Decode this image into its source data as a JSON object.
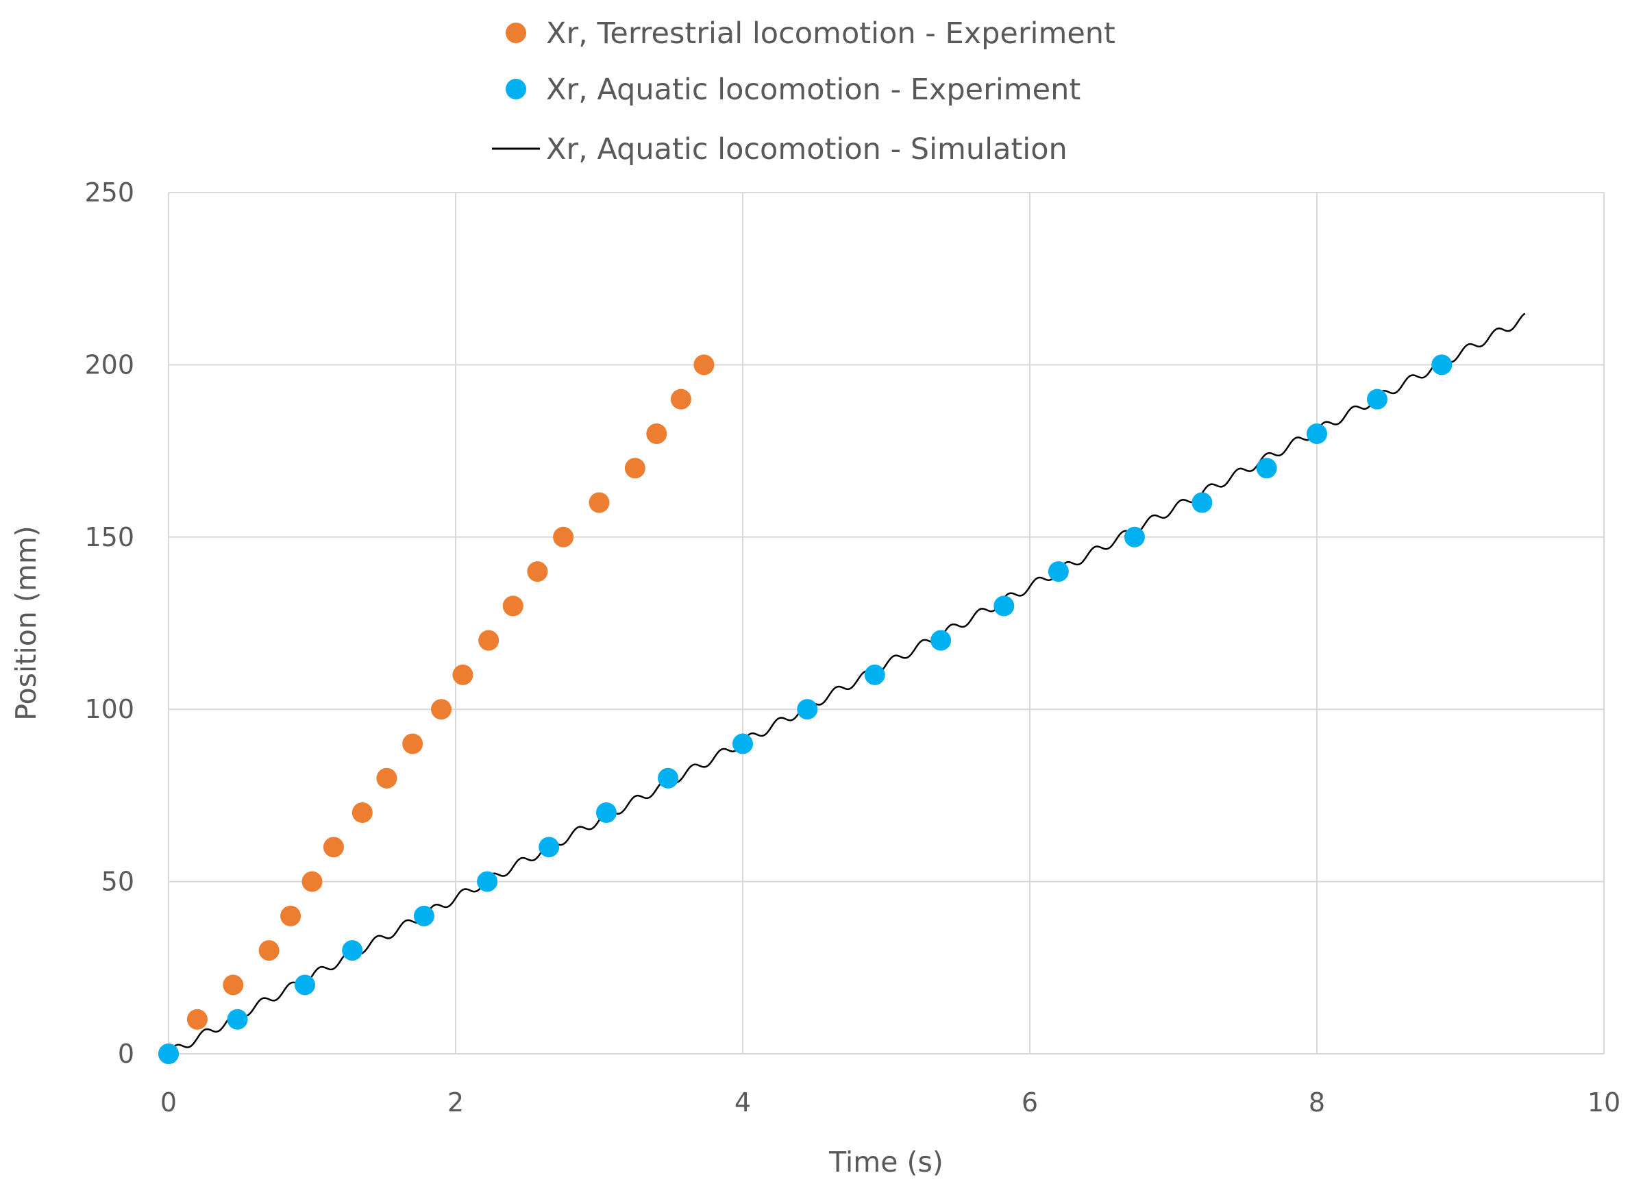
{
  "chart_data": {
    "type": "scatter",
    "xlabel": "Time (s)",
    "ylabel": "Position (mm)",
    "xlim": [
      0,
      10
    ],
    "ylim": [
      0,
      250
    ],
    "xticks": [
      0,
      2,
      4,
      6,
      8,
      10
    ],
    "yticks": [
      0,
      50,
      100,
      150,
      200,
      250
    ],
    "grid": true,
    "legend_position": "top",
    "series": [
      {
        "name": "Xr, Terrestrial locomotion - Experiment",
        "kind": "scatter",
        "color": "#ED7D31",
        "points": [
          [
            0.0,
            0
          ],
          [
            0.2,
            10
          ],
          [
            0.45,
            20
          ],
          [
            0.7,
            30
          ],
          [
            0.85,
            40
          ],
          [
            1.0,
            50
          ],
          [
            1.15,
            60
          ],
          [
            1.35,
            70
          ],
          [
            1.52,
            80
          ],
          [
            1.7,
            90
          ],
          [
            1.9,
            100
          ],
          [
            2.05,
            110
          ],
          [
            2.23,
            120
          ],
          [
            2.4,
            130
          ],
          [
            2.57,
            140
          ],
          [
            2.75,
            150
          ],
          [
            3.0,
            160
          ],
          [
            3.25,
            170
          ],
          [
            3.4,
            180
          ],
          [
            3.57,
            190
          ],
          [
            3.73,
            200
          ]
        ]
      },
      {
        "name": "Xr, Aquatic locomotion - Experiment",
        "kind": "scatter",
        "color": "#00B0F0",
        "points": [
          [
            0.0,
            0
          ],
          [
            0.48,
            10
          ],
          [
            0.95,
            20
          ],
          [
            1.28,
            30
          ],
          [
            1.78,
            40
          ],
          [
            2.22,
            50
          ],
          [
            2.65,
            60
          ],
          [
            3.05,
            70
          ],
          [
            3.48,
            80
          ],
          [
            4.0,
            90
          ],
          [
            4.45,
            100
          ],
          [
            4.92,
            110
          ],
          [
            5.38,
            120
          ],
          [
            5.82,
            130
          ],
          [
            6.2,
            140
          ],
          [
            6.73,
            150
          ],
          [
            7.2,
            160
          ],
          [
            7.65,
            170
          ],
          [
            8.0,
            180
          ],
          [
            8.42,
            190
          ],
          [
            8.87,
            200
          ]
        ]
      },
      {
        "name": "Xr, Aquatic locomotion - Simulation",
        "kind": "line",
        "color": "#000000",
        "slope_mm_per_s": 22.6,
        "oscillation_amplitude_mm": 1.3,
        "oscillation_period_s": 0.2,
        "x_range": [
          0.0,
          9.45
        ]
      }
    ]
  }
}
